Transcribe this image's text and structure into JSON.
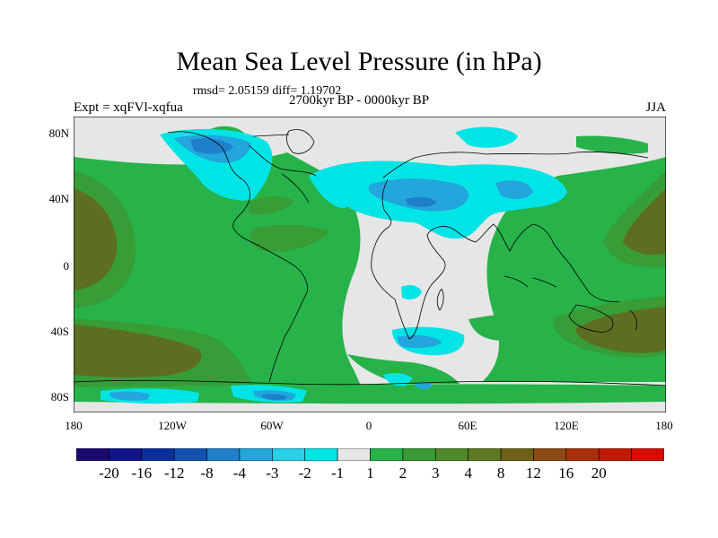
{
  "title": "Mean Sea Level Pressure (in hPa)",
  "stats": "rmsd= 2.05159 diff= 1.19702",
  "experiment": "Expt = xqFVl-xqfua",
  "subtitle": "2700kyr BP - 0000kyr BP",
  "season": "JJA",
  "y_ticks": [
    "80N",
    "40N",
    "0",
    "40S",
    "80S"
  ],
  "x_ticks": [
    "180",
    "120W",
    "60W",
    "0",
    "60E",
    "120E",
    "180"
  ],
  "colorbar": {
    "colors": [
      "#1a0a6e",
      "#10138a",
      "#0a2e9c",
      "#1450b0",
      "#1f7fca",
      "#22a6dc",
      "#2ad0e8",
      "#00e4e6",
      "#e6e6e6",
      "#27b34a",
      "#3a9a36",
      "#4f8a2a",
      "#5f7a22",
      "#70601a",
      "#8c4a14",
      "#a8300c",
      "#c01a06",
      "#d80c02"
    ],
    "labels": [
      "-20",
      "-16",
      "-12",
      "-8",
      "-4",
      "-3",
      "-2",
      "-1",
      "1",
      "2",
      "3",
      "4",
      "8",
      "12",
      "16",
      "20"
    ]
  }
}
